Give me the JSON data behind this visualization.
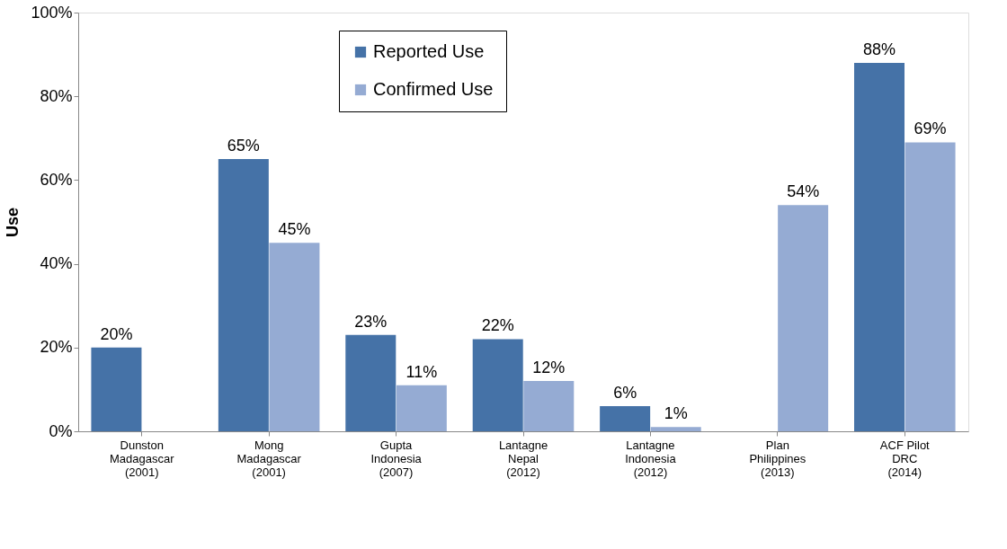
{
  "chart_data": {
    "type": "bar",
    "ylabel": "Use",
    "categories": [
      "Dunston\nMadagascar\n(2001)",
      "Mong\nMadagascar\n(2001)",
      "Gupta\nIndonesia\n(2007)",
      "Lantagne\nNepal\n(2012)",
      "Lantagne\nIndonesia\n(2012)",
      "Plan\nPhilippines\n(2013)",
      "ACF Pilot\nDRC\n(2014)"
    ],
    "series": [
      {
        "name": "Reported Use",
        "color": "#4572a7",
        "values": [
          20,
          65,
          23,
          22,
          6,
          null,
          88
        ],
        "value_labels": [
          "20%",
          "65%",
          "23%",
          "22%",
          "6%",
          null,
          "88%"
        ]
      },
      {
        "name": "Confirmed Use",
        "color": "#95abd3",
        "values": [
          null,
          45,
          11,
          12,
          1,
          54,
          69
        ],
        "value_labels": [
          null,
          "45%",
          "11%",
          "12%",
          "1%",
          "54%",
          "69%"
        ]
      }
    ],
    "ylim": [
      0,
      100
    ],
    "yticks": [
      {
        "value": 0,
        "label": "0%"
      },
      {
        "value": 20,
        "label": "20%"
      },
      {
        "value": 40,
        "label": "40%"
      },
      {
        "value": 60,
        "label": "60%"
      },
      {
        "value": 80,
        "label": "80%"
      },
      {
        "value": 100,
        "label": "100%"
      }
    ],
    "legend": "top",
    "grid": false
  }
}
